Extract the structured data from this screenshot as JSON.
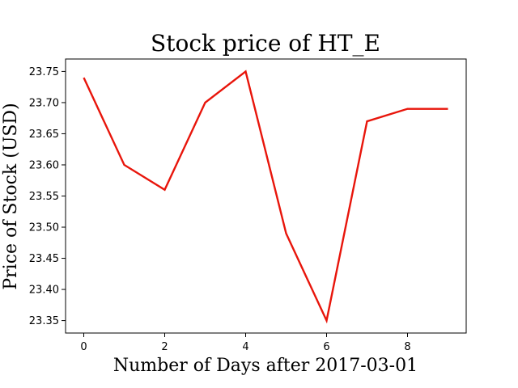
{
  "chart_data": {
    "type": "line",
    "title": "Stock price of HT_E",
    "xlabel": "Number of Days after 2017-03-01",
    "ylabel": "Price of Stock (USD)",
    "x": [
      0,
      1,
      2,
      3,
      4,
      5,
      6,
      7,
      8,
      9
    ],
    "series": [
      {
        "values": [
          23.74,
          23.6,
          23.56,
          23.7,
          23.75,
          23.49,
          23.35,
          23.67,
          23.69,
          23.69
        ],
        "color": "#e8150b"
      }
    ],
    "xlim": [
      -0.45,
      9.45
    ],
    "ylim": [
      23.33,
      23.77
    ],
    "xticks": [
      0,
      2,
      4,
      6,
      8
    ],
    "yticks": [
      23.35,
      23.4,
      23.45,
      23.5,
      23.55,
      23.6,
      23.65,
      23.7,
      23.75
    ],
    "ytick_labels": [
      "23.35",
      "23.40",
      "23.45",
      "23.50",
      "23.55",
      "23.60",
      "23.65",
      "23.70",
      "23.75"
    ],
    "xtick_labels": [
      "0",
      "2",
      "4",
      "6",
      "8"
    ],
    "grid": false,
    "legend": false
  }
}
